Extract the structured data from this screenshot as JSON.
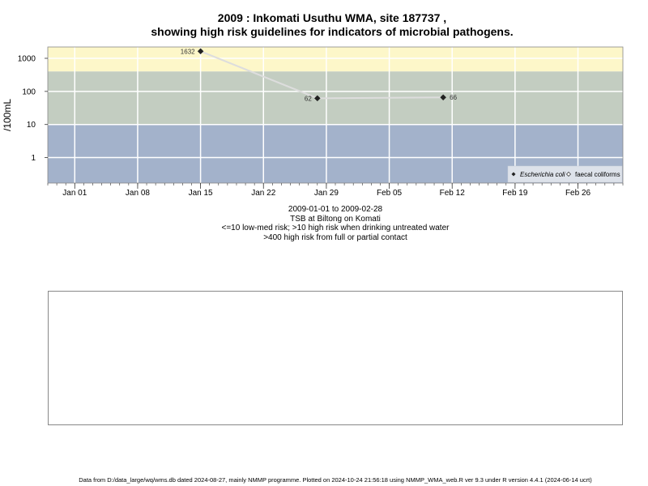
{
  "title_line1": "2009 : Inkomati Usuthu WMA, site 187737 ,",
  "title_line2": "showing high risk guidelines for indicators of microbial pathogens.",
  "caption": [
    "2009-01-01 to 2009-02-28",
    "TSB at Biltong on Komati",
    "<=10 low-med risk; >10 high risk when drinking untreated water",
    ">400 high risk from full or partial contact"
  ],
  "footer": "Data from D:/data_large/wq/wms.db dated 2024-08-27, mainly NMMP programme. Plotted on 2024-10-24 21:56:18 using NMMP_WMA_web.R ver 9.3 under R version 4.4.1 (2024-06-14 ucrt)",
  "colors": {
    "zone_high_contact": "#fdf7c9",
    "zone_high_drinking": "#c3cdc1",
    "zone_low_med": "#a3b2cb",
    "line": "#dddddd",
    "grid": "#ffffff"
  },
  "chart_data": {
    "type": "line",
    "ylabel": "/100mL",
    "y_scale": "log",
    "y_ticks": [
      1,
      10,
      100,
      1000
    ],
    "y_tick_labels": [
      "1",
      "10",
      "100",
      "1000"
    ],
    "xlim": [
      "2008-12-29",
      "2009-03-03"
    ],
    "ylim": [
      0.17,
      2200
    ],
    "x_ticks": [
      "2009-01-01",
      "2009-01-08",
      "2009-01-15",
      "2009-01-22",
      "2009-01-29",
      "2009-02-05",
      "2009-02-12",
      "2009-02-19",
      "2009-02-26"
    ],
    "x_tick_labels": [
      "Jan 01",
      "Jan 08",
      "Jan 15",
      "Jan 22",
      "Jan 29",
      "Feb 05",
      "Feb 12",
      "Feb 19",
      "Feb 26"
    ],
    "risk_bands": [
      {
        "from": 400,
        "to": 2200,
        "meaning": ">400 high risk from full or partial contact"
      },
      {
        "from": 10,
        "to": 400,
        "meaning": ">10 high risk when drinking untreated water"
      },
      {
        "from": 0.17,
        "to": 10,
        "meaning": "<=10 low-med risk"
      }
    ],
    "series": [
      {
        "name": "Escherichia coli",
        "marker": "filled-diamond",
        "points": [
          {
            "x": "2009-01-15",
            "y": 1632,
            "label": "1632"
          },
          {
            "x": "2009-01-28",
            "y": 62,
            "label": "62"
          },
          {
            "x": "2009-02-11",
            "y": 66,
            "label": "66"
          }
        ]
      },
      {
        "name": "faecal coliforms",
        "marker": "open-diamond",
        "points": []
      }
    ],
    "legend_position": "bottom-right",
    "grid": true
  }
}
